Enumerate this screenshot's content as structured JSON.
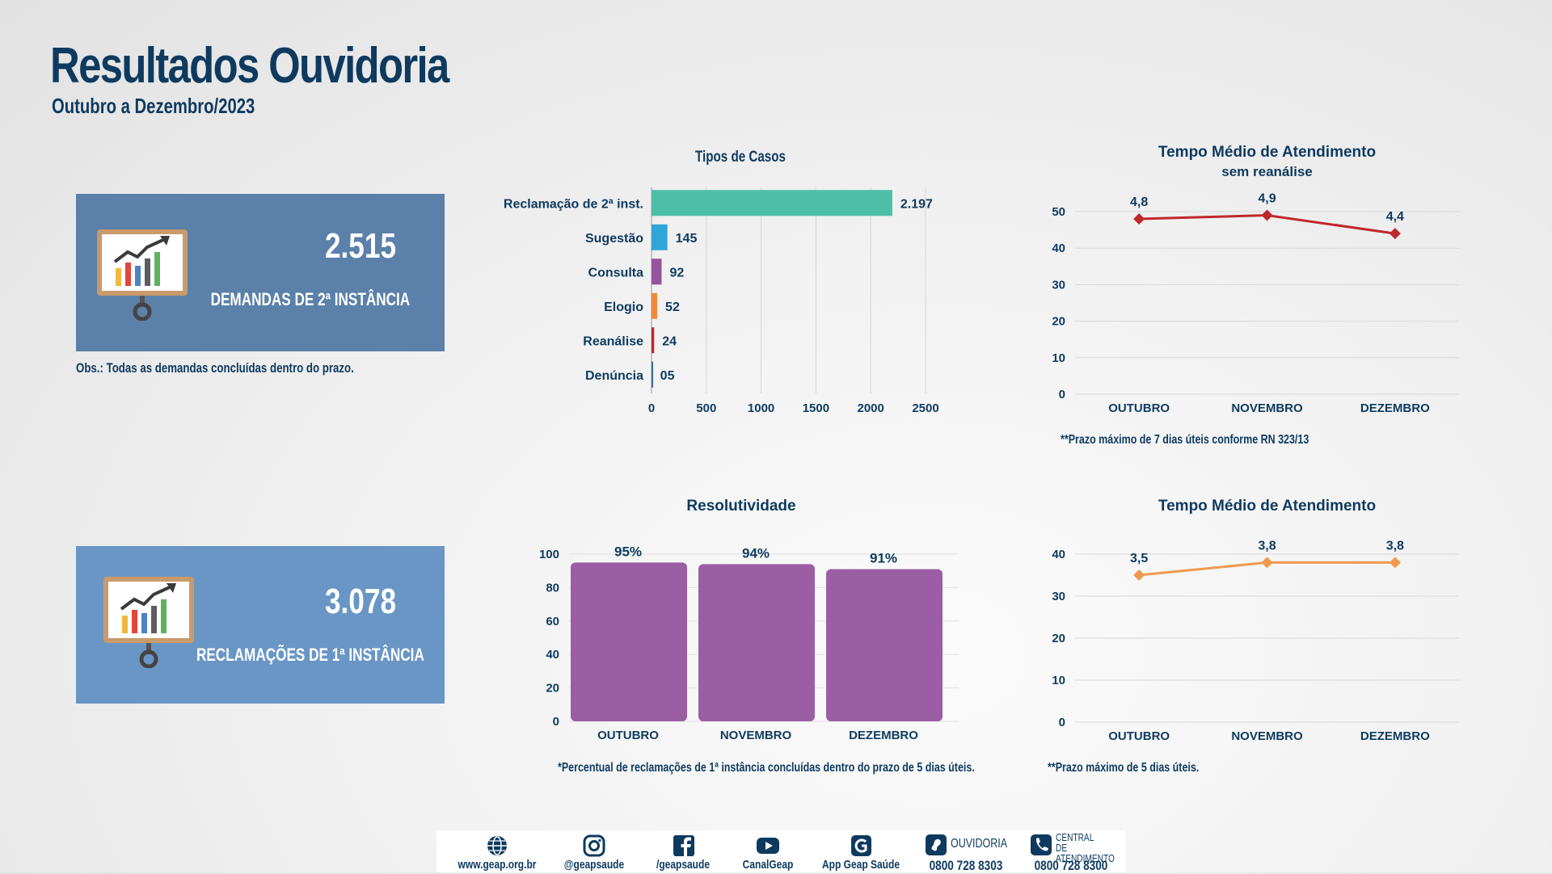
{
  "header": {
    "title": "Resultados Ouvidoria",
    "subtitle": "Outubro a Dezembro/2023"
  },
  "kpis": [
    {
      "value": "2.515",
      "label": "DEMANDAS DE 2ª INSTÂNCIA",
      "color": "#5b80a9"
    },
    {
      "value": "3.078",
      "label": "RECLAMAÇÕES DE 1ª INSTÂNCIA",
      "color": "#6996c5"
    }
  ],
  "notes": {
    "kpi_obs": "Obs.: Todas as demandas concluídas dentro do prazo.",
    "tempo1": "**Prazo máximo de 7 dias úteis conforme RN 323/13",
    "resolutividade": "*Percentual de reclamações de 1ª instância concluídas dentro do prazo de 5 dias úteis.",
    "tempo2": "**Prazo máximo de 5 dias úteis."
  },
  "chart_data": [
    {
      "id": "tipos",
      "type": "bar",
      "orientation": "horizontal",
      "title": "Tipos de Casos",
      "categories": [
        "Reclamação de 2ª inst.",
        "Sugestão",
        "Consulta",
        "Elogio",
        "Reanálise",
        "Denúncia"
      ],
      "values": [
        2197,
        145,
        92,
        52,
        24,
        5
      ],
      "value_labels": [
        "2.197",
        "145",
        "92",
        "52",
        "24",
        "05"
      ],
      "colors": [
        "#4dbfa8",
        "#2fa6d6",
        "#95549c",
        "#ef8a3c",
        "#c0272d",
        "#3f6a9a"
      ],
      "xlim": [
        0,
        2500
      ],
      "xticks": [
        "0",
        "500",
        "1000",
        "1500",
        "2000",
        "2500"
      ],
      "grid": true
    },
    {
      "id": "tempo1",
      "type": "line",
      "title": "Tempo Médio de Atendimento",
      "subtitle": "sem reanálise",
      "categories": [
        "OUTUBRO",
        "NOVEMBRO",
        "DEZEMBRO"
      ],
      "values": [
        48,
        49,
        44
      ],
      "value_labels": [
        "4,8",
        "4,9",
        "4,4"
      ],
      "color": "#c0272d",
      "ylim": [
        0,
        50
      ],
      "yticks": [
        "0",
        "10",
        "20",
        "30",
        "40",
        "50"
      ],
      "grid": true
    },
    {
      "id": "resolutividade",
      "type": "bar",
      "title": "Resolutividade",
      "categories": [
        "OUTUBRO",
        "NOVEMBRO",
        "DEZEMBRO"
      ],
      "values": [
        95,
        94,
        91
      ],
      "value_labels": [
        "95%",
        "94%",
        "91%"
      ],
      "color": "#9b5ea5",
      "ylim": [
        0,
        100
      ],
      "yticks": [
        "0",
        "20",
        "40",
        "60",
        "80",
        "100"
      ],
      "grid": true
    },
    {
      "id": "tempo2",
      "type": "line",
      "title": "Tempo Médio de Atendimento",
      "categories": [
        "OUTUBRO",
        "NOVEMBRO",
        "DEZEMBRO"
      ],
      "values": [
        35,
        38,
        38
      ],
      "value_labels": [
        "3,5",
        "3,8",
        "3,8"
      ],
      "color": "#ef9a4c",
      "ylim": [
        0,
        40
      ],
      "yticks": [
        "0",
        "10",
        "20",
        "30",
        "40"
      ],
      "grid": true
    }
  ],
  "footer": [
    {
      "icon": "globe-icon",
      "label": "www.geap.org.br"
    },
    {
      "icon": "instagram-icon",
      "label": "@geapsaude"
    },
    {
      "icon": "facebook-icon",
      "label": "/geapsaude"
    },
    {
      "icon": "youtube-icon",
      "label": "CanalGeap"
    },
    {
      "icon": "app-icon",
      "label": "App Geap Saúde"
    },
    {
      "icon": "ouvidoria-icon",
      "label": "0800 728 8303",
      "caption": "OUVIDORIA"
    },
    {
      "icon": "phone-icon",
      "label": "0800 728 8300",
      "caption": "CENTRAL DE ATENDIMENTO"
    }
  ]
}
